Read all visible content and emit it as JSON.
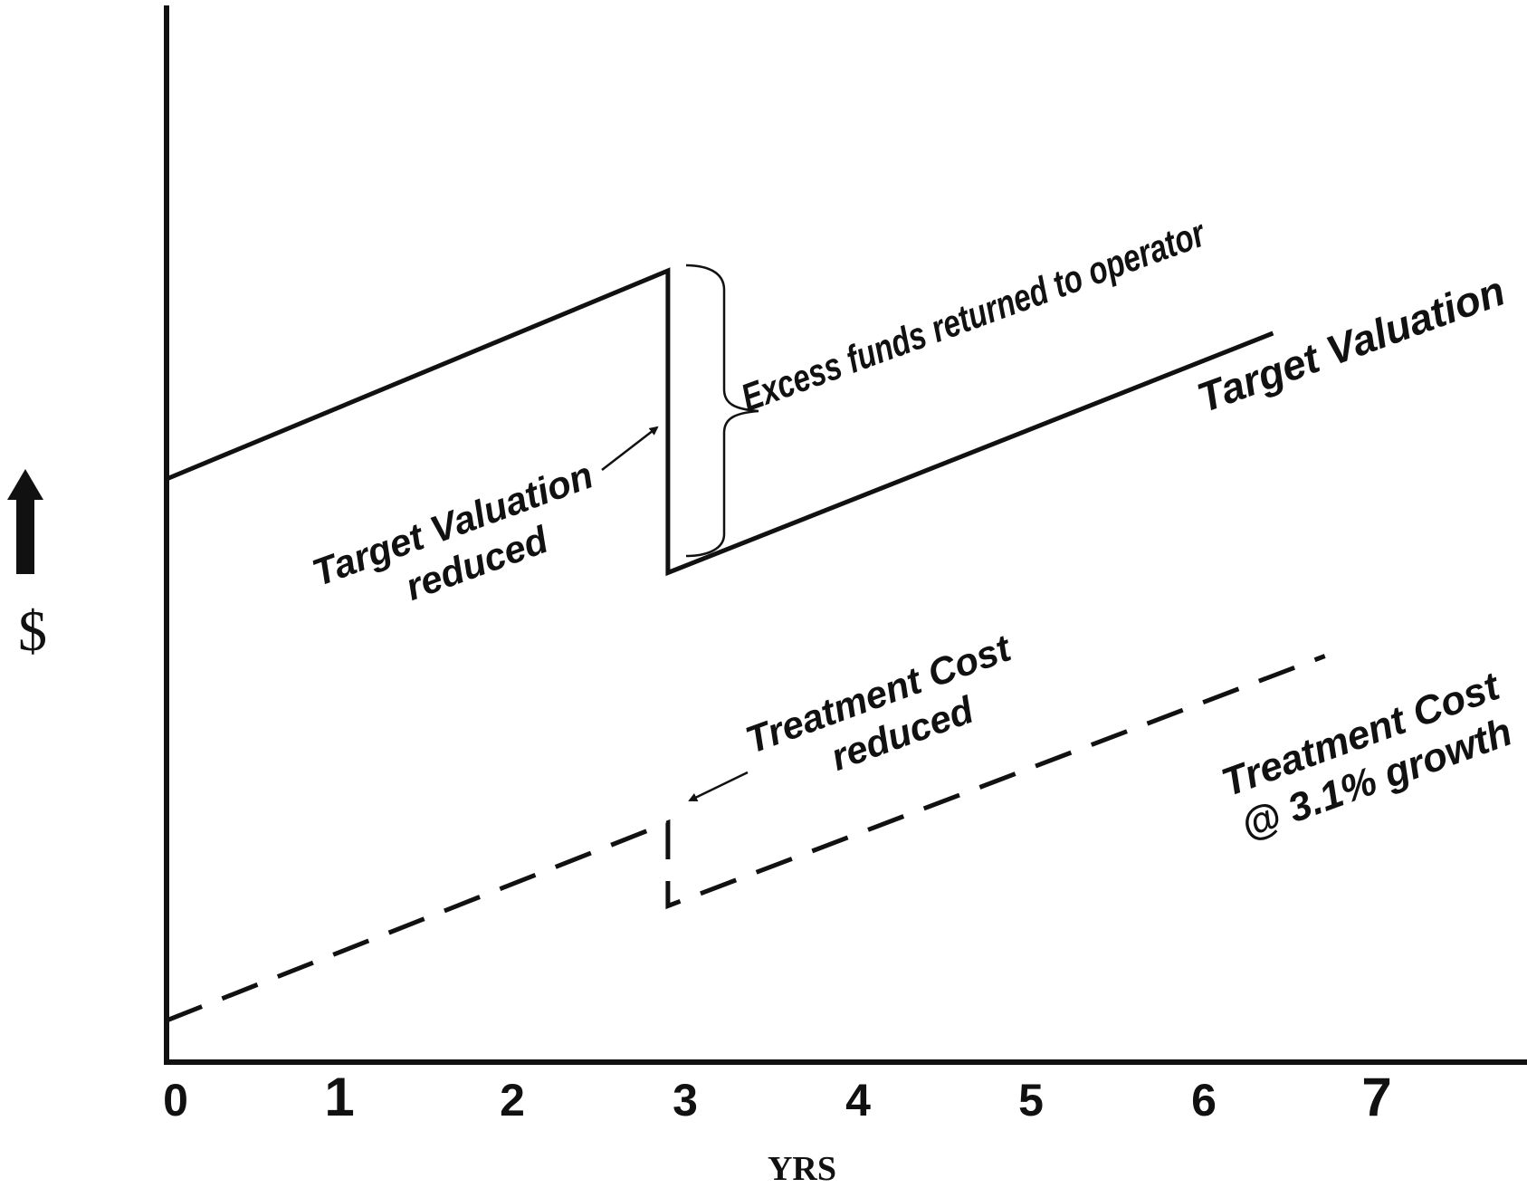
{
  "chart_data": {
    "type": "line",
    "xlabel": "YRS",
    "ylabel": "$",
    "x_ticks": [
      "0",
      "1",
      "2",
      "3",
      "4",
      "5",
      "6",
      "7"
    ],
    "xlim": [
      0,
      8
    ],
    "ylim": [
      0,
      100
    ],
    "y_axis_ticks_shown": false,
    "grid": false,
    "series": [
      {
        "name": "Target Valuation",
        "style": "solid",
        "color": "#111111",
        "points": [
          [
            0,
            56
          ],
          [
            2.9,
            76
          ],
          [
            2.9,
            47
          ],
          [
            6.4,
            70
          ]
        ]
      },
      {
        "name": "Treatment Cost @ 3.1% growth",
        "style": "dashed",
        "color": "#111111",
        "points": [
          [
            0,
            4
          ],
          [
            2.9,
            23
          ],
          [
            2.9,
            15
          ],
          [
            6.7,
            39
          ]
        ]
      }
    ],
    "annotations": {
      "excess": "Excess funds returned to operator",
      "tv_reduced_line1": "Target Valuation",
      "tv_reduced_line2": "reduced",
      "tv_label": "Target Valuation",
      "tc_reduced_line1": "Treatment Cost",
      "tc_reduced_line2": "reduced",
      "tc_label_line1": "Treatment Cost",
      "tc_label_line2": "@ 3.1% growth"
    }
  }
}
